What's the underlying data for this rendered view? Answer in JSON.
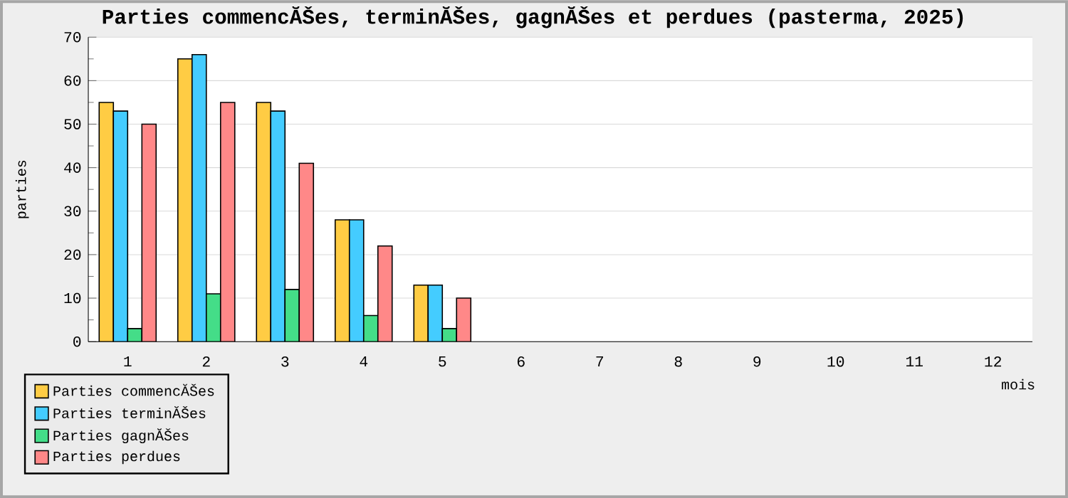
{
  "chart_data": {
    "type": "bar",
    "title": "Parties commencĂŠes, terminĂŠes, gagnĂŠes et perdues (pasterma, 2025)",
    "xlabel": "mois",
    "ylabel": "parties",
    "categories": [
      "1",
      "2",
      "3",
      "4",
      "5",
      "6",
      "7",
      "8",
      "9",
      "10",
      "11",
      "12"
    ],
    "series": [
      {
        "name": "Parties commencĂŠes",
        "color": "#ffcc44",
        "values": [
          55,
          65,
          55,
          28,
          13,
          null,
          null,
          null,
          null,
          null,
          null,
          null
        ]
      },
      {
        "name": "Parties terminĂŠes",
        "color": "#44ccff",
        "values": [
          53,
          66,
          53,
          28,
          13,
          null,
          null,
          null,
          null,
          null,
          null,
          null
        ]
      },
      {
        "name": "Parties gagnĂŠes",
        "color": "#44dd88",
        "values": [
          3,
          11,
          12,
          6,
          3,
          null,
          null,
          null,
          null,
          null,
          null,
          null
        ]
      },
      {
        "name": "Parties perdues",
        "color": "#ff8888",
        "values": [
          50,
          55,
          41,
          22,
          10,
          null,
          null,
          null,
          null,
          null,
          null,
          null
        ]
      }
    ],
    "ylim": [
      0,
      70
    ],
    "yticks": [
      0,
      10,
      20,
      30,
      40,
      50,
      60,
      70
    ],
    "grid": "y",
    "legend": "bottom left"
  }
}
